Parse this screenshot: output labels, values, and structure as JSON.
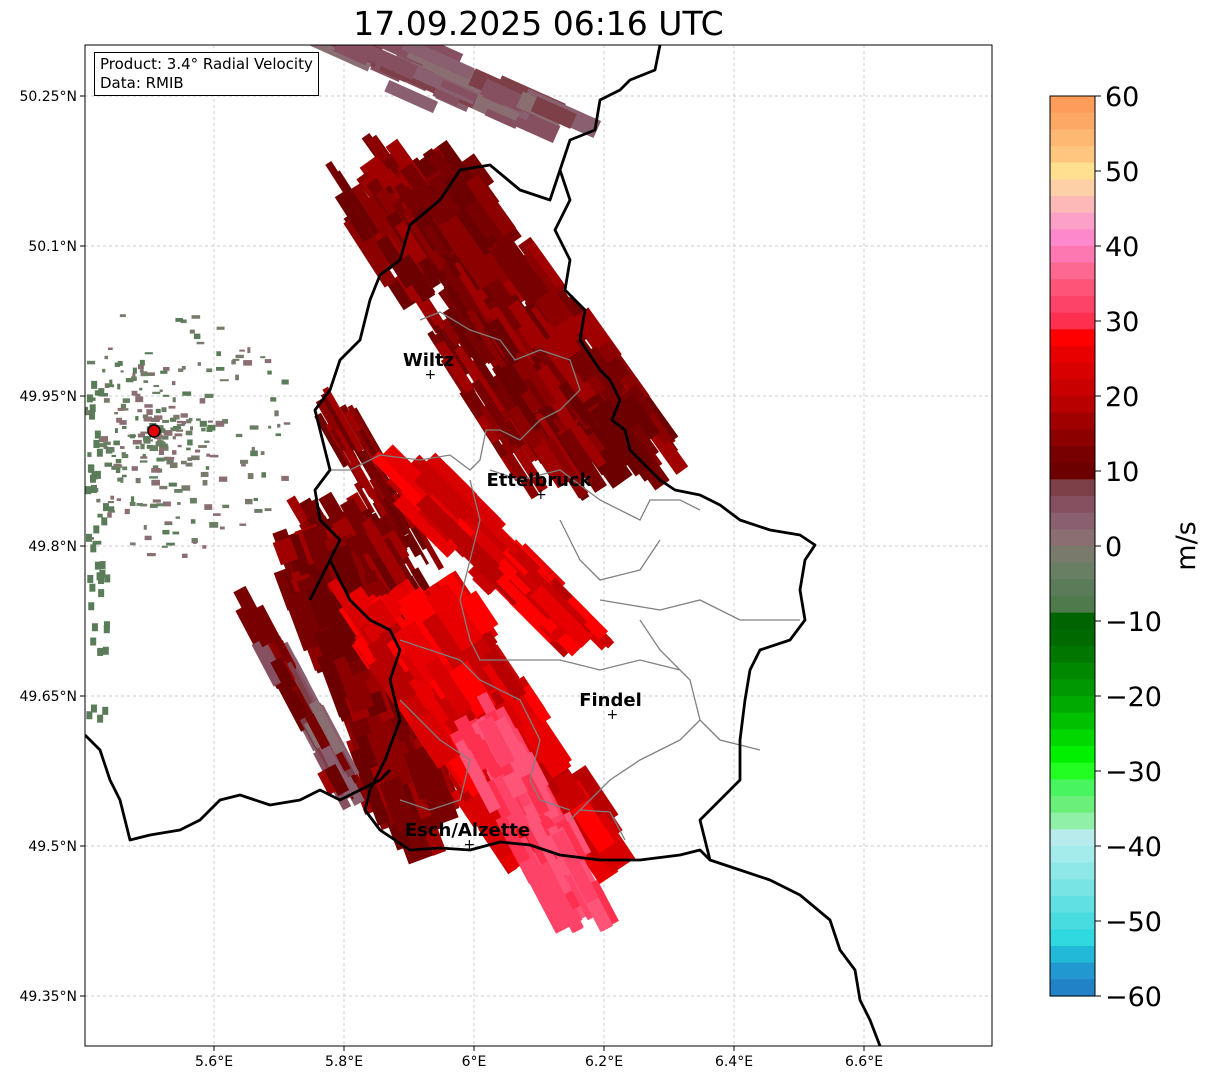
{
  "title": "17.09.2025 06:16 UTC",
  "info": {
    "product": "Product: 3.4° Radial Velocity",
    "data": "Data: RMIB"
  },
  "axes": {
    "lon_ticks": [
      "5.6°E",
      "5.8°E",
      "6°E",
      "6.2°E",
      "6.4°E",
      "6.6°E"
    ],
    "lat_ticks": [
      "50.25°N",
      "50.1°N",
      "49.95°N",
      "49.8°N",
      "49.65°N",
      "49.5°N",
      "49.35°N"
    ]
  },
  "cities": [
    {
      "name": "Wiltz",
      "lon": 5.93,
      "lat": 49.97
    },
    {
      "name": "Ettelbruck",
      "lon": 6.1,
      "lat": 49.85
    },
    {
      "name": "Findel",
      "lon": 6.21,
      "lat": 49.63
    },
    {
      "name": "Esch/Alzette",
      "lon": 5.99,
      "lat": 49.5
    }
  ],
  "radar_site": {
    "lon": 5.505,
    "lat": 49.914,
    "color": "#e00000"
  },
  "colorbar": {
    "label": "m/s",
    "min": -60,
    "max": 60,
    "ticks": [
      "60",
      "50",
      "40",
      "30",
      "20",
      "10",
      "0",
      "−10",
      "−20",
      "−30",
      "−40",
      "−50",
      "−60"
    ],
    "colors_top_to_bottom": [
      "#fe9c5a",
      "#fea865",
      "#feb872",
      "#fec67e",
      "#fee090",
      "#fed0a8",
      "#fdb8b8",
      "#fda0c8",
      "#fd88cc",
      "#fd78b0",
      "#fd6890",
      "#fd5478",
      "#fd4468",
      "#fe3050",
      "#fe0000",
      "#e80000",
      "#d80000",
      "#c80000",
      "#b80000",
      "#a00000",
      "#8c0000",
      "#780000",
      "#6c0000",
      "#7e4048",
      "#865060",
      "#8a6070",
      "#8a6e72",
      "#7a7a6c",
      "#687f64",
      "#5a7c58",
      "#4e7a4c",
      "#006400",
      "#006a00",
      "#007800",
      "#008800",
      "#009800",
      "#00aa00",
      "#00c000",
      "#00d800",
      "#00f000",
      "#22fe22",
      "#48f460",
      "#6af07a",
      "#90f0a8",
      "#b8ecec",
      "#a4ecec",
      "#8ee8e8",
      "#78e4e4",
      "#60e0e0",
      "#48dce0",
      "#30d8e0",
      "#22b8d8",
      "#2298d0",
      "#2282c8"
    ]
  }
}
